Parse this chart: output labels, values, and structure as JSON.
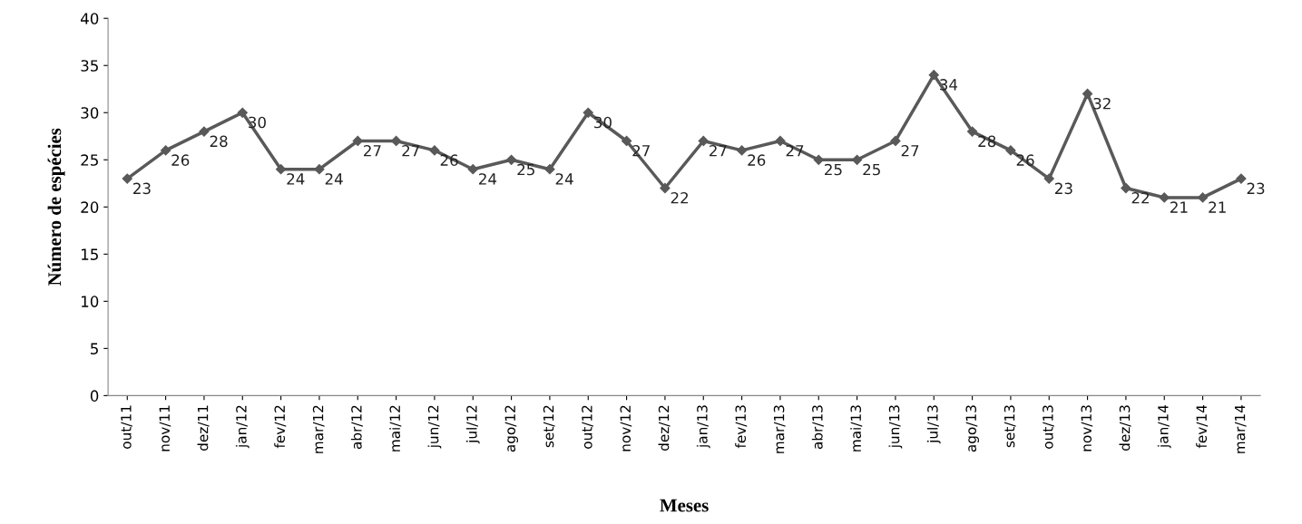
{
  "chart_data": {
    "type": "line",
    "xlabel": "Meses",
    "ylabel": "Número de espécies",
    "categories": [
      "out/11",
      "nov/11",
      "dez/11",
      "jan/12",
      "fev/12",
      "mar/12",
      "abr/12",
      "mai/12",
      "jun/12",
      "jul/12",
      "ago/12",
      "set/12",
      "out/12",
      "nov/12",
      "dez/12",
      "jan/13",
      "fev/13",
      "mar/13",
      "abr/13",
      "mai/13",
      "jun/13",
      "jul/13",
      "ago/13",
      "set/13",
      "out/13",
      "nov/13",
      "dez/13",
      "jan/14",
      "fev/14",
      "mar/14"
    ],
    "series": [
      {
        "color": "#595959",
        "values": [
          23,
          26,
          28,
          30,
          24,
          24,
          27,
          27,
          26,
          24,
          25,
          24,
          30,
          27,
          22,
          27,
          26,
          27,
          25,
          25,
          27,
          34,
          28,
          26,
          23,
          32,
          22,
          21,
          21,
          23
        ]
      }
    ],
    "ylim": [
      0,
      40
    ],
    "yticks": [
      0,
      5,
      10,
      15,
      20,
      25,
      30,
      35,
      40
    ],
    "grid": false,
    "legend": false,
    "marker": "diamond",
    "line_style": "solid",
    "data_labels": true
  }
}
